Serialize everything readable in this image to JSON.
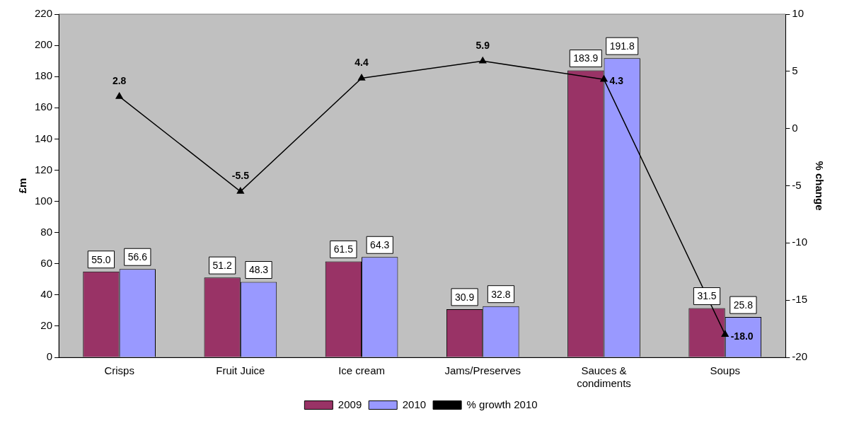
{
  "chart_data": {
    "type": "bar",
    "ylabel": "£m",
    "y2label": "% change",
    "categories": [
      "Crisps",
      "Fruit Juice",
      "Ice cream",
      "Jams/Preserves",
      "Sauces & condiments",
      "Soups"
    ],
    "series": [
      {
        "name": "2009",
        "color": "#993366",
        "values": [
          55.0,
          51.2,
          61.5,
          30.9,
          183.9,
          31.5
        ],
        "value_labels": [
          "55.0",
          "51.2",
          "61.5",
          "30.9",
          "183.9",
          "31.5"
        ]
      },
      {
        "name": "2010",
        "color": "#9999ff",
        "values": [
          56.6,
          48.3,
          64.3,
          32.8,
          191.8,
          25.8
        ],
        "value_labels": [
          "56.6",
          "48.3",
          "64.3",
          "32.8",
          "191.8",
          "25.8"
        ]
      },
      {
        "name": "% growth 2010",
        "type": "line",
        "axis": "y2",
        "color": "#000000",
        "marker": "triangle",
        "values": [
          2.8,
          -5.5,
          4.4,
          5.9,
          4.3,
          -18.0
        ],
        "value_labels": [
          "2.8",
          "-5.5",
          "4.4",
          "5.9",
          "4.3",
          "-18.0"
        ]
      }
    ],
    "ylim": [
      0,
      220
    ],
    "yticks": [
      0,
      20,
      40,
      60,
      80,
      100,
      120,
      140,
      160,
      180,
      200,
      220
    ],
    "y2lim": [
      -20,
      10
    ],
    "y2ticks": [
      -20,
      -15,
      -10,
      -5,
      0,
      5,
      10
    ],
    "grid": false,
    "legend": "bottom"
  }
}
